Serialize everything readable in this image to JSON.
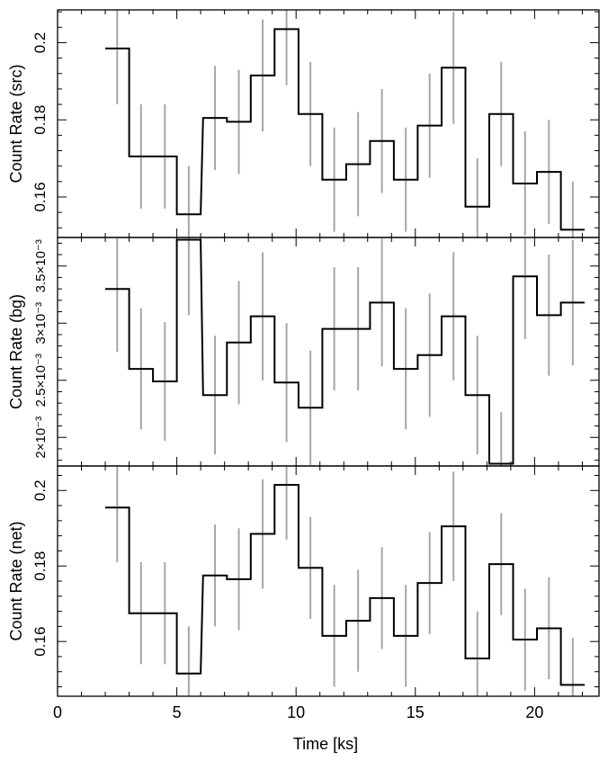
{
  "chart_data": [
    {
      "type": "step",
      "ylabel": "Count Rate (src)",
      "xlim": [
        0,
        22.7
      ],
      "ylim": [
        0.1495,
        0.2085
      ],
      "yticks": [
        0.16,
        0.18,
        0.2
      ],
      "ytick_labels": [
        "0.16",
        "0.18",
        "0.2"
      ],
      "x": [
        2.5,
        3.5,
        4.5,
        5.5,
        6.6,
        7.6,
        8.6,
        9.6,
        10.6,
        11.6,
        12.6,
        13.6,
        14.6,
        15.6,
        16.6,
        17.6,
        18.6,
        19.6,
        20.6,
        21.6
      ],
      "values": [
        0.1985,
        0.1705,
        0.1705,
        0.1555,
        0.1805,
        0.1795,
        0.1915,
        0.2035,
        0.1815,
        0.1645,
        0.1685,
        0.1745,
        0.1645,
        0.1785,
        0.1935,
        0.1575,
        0.1815,
        0.1635,
        0.1665,
        0.1515
      ],
      "errors": [
        0.0145,
        0.0135,
        0.0135,
        0.0125,
        0.0135,
        0.0135,
        0.0145,
        0.0145,
        0.0135,
        0.0135,
        0.0135,
        0.0135,
        0.0135,
        0.0135,
        0.0145,
        0.0125,
        0.0135,
        0.0135,
        0.0135,
        0.0125
      ]
    },
    {
      "type": "step",
      "ylabel": "Count Rate (bg)",
      "xlim": [
        0,
        22.7
      ],
      "ylim": [
        0.00175,
        0.00375
      ],
      "yticks": [
        0.002,
        0.0025,
        0.003,
        0.0035
      ],
      "ytick_labels": [
        "2×10⁻³",
        "2.5×10⁻³",
        "3×10⁻³",
        "3.5×10⁻³"
      ],
      "x": [
        2.5,
        3.5,
        4.5,
        5.5,
        6.6,
        7.6,
        8.6,
        9.6,
        10.6,
        11.6,
        12.6,
        13.6,
        14.6,
        15.6,
        16.6,
        17.6,
        18.6,
        19.6,
        20.6,
        21.6
      ],
      "values": [
        0.0033,
        0.0026,
        0.00249,
        0.00373,
        0.00237,
        0.00283,
        0.00306,
        0.00248,
        0.00226,
        0.00295,
        0.00295,
        0.00318,
        0.0026,
        0.00272,
        0.00306,
        0.00237,
        0.00177,
        0.00341,
        0.00307,
        0.00318
      ],
      "errors": [
        0.00055,
        0.00053,
        0.00052,
        0.00066,
        0.00052,
        0.00054,
        0.00056,
        0.00052,
        0.0005,
        0.00054,
        0.00054,
        0.00056,
        0.00053,
        0.00054,
        0.00056,
        0.00052,
        0.00045,
        0.00055,
        0.00053,
        0.00055
      ]
    },
    {
      "type": "step",
      "ylabel": "Count Rate (net)",
      "xlabel": "Time [ks]",
      "xlim": [
        0,
        22.7
      ],
      "ylim": [
        0.1455,
        0.2065
      ],
      "yticks": [
        0.16,
        0.18,
        0.2
      ],
      "ytick_labels": [
        "0.16",
        "0.18",
        "0.2"
      ],
      "xticks": [
        0,
        5,
        10,
        15,
        20
      ],
      "xtick_labels": [
        "0",
        "5",
        "10",
        "15",
        "20"
      ],
      "x": [
        2.5,
        3.5,
        4.5,
        5.5,
        6.6,
        7.6,
        8.6,
        9.6,
        10.6,
        11.6,
        12.6,
        13.6,
        14.6,
        15.6,
        16.6,
        17.6,
        18.6,
        19.6,
        20.6,
        21.6
      ],
      "values": [
        0.1955,
        0.1675,
        0.1675,
        0.1515,
        0.1775,
        0.1765,
        0.1885,
        0.2015,
        0.1795,
        0.1615,
        0.1655,
        0.1715,
        0.1615,
        0.1755,
        0.1905,
        0.1555,
        0.1805,
        0.1605,
        0.1635,
        0.1485
      ],
      "errors": [
        0.0145,
        0.0135,
        0.0135,
        0.0125,
        0.0135,
        0.0135,
        0.0145,
        0.0145,
        0.0135,
        0.0135,
        0.0135,
        0.0135,
        0.0135,
        0.0135,
        0.0145,
        0.0125,
        0.0135,
        0.0135,
        0.0135,
        0.0125
      ]
    }
  ]
}
